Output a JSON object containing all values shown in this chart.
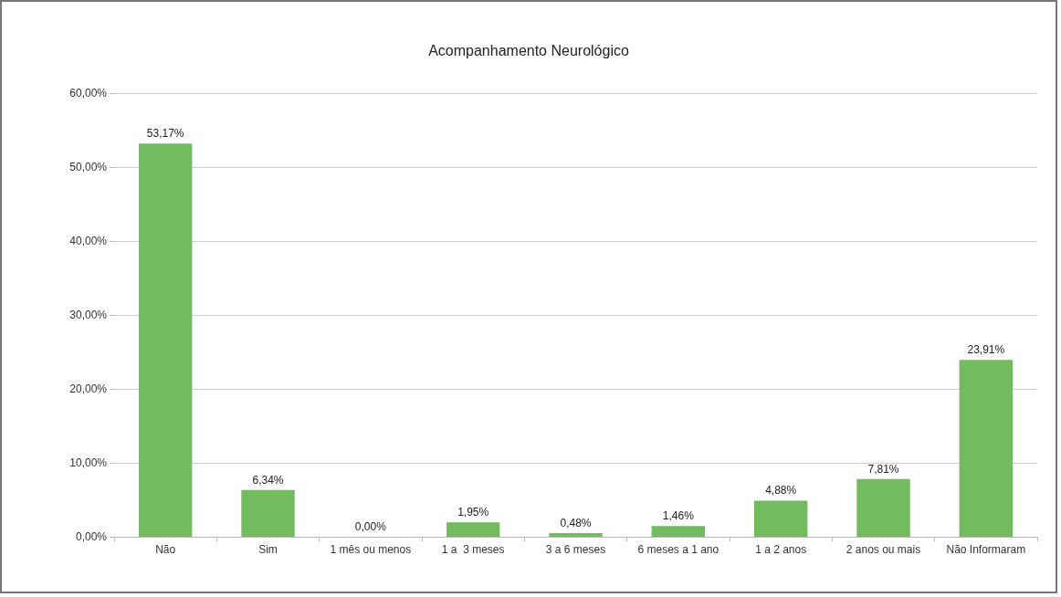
{
  "chart_data": {
    "type": "bar",
    "title": "Acompanhamento Neurológico",
    "categories": [
      "Não",
      "Sim",
      "1 mês ou menos",
      "1 a  3 meses",
      "3 a 6 meses",
      "6 meses a 1 ano",
      "1 a 2 anos",
      "2 anos ou mais",
      "Não Informaram"
    ],
    "values": [
      53.17,
      6.34,
      0,
      1.95,
      0.48,
      1.46,
      4.88,
      7.81,
      23.91
    ],
    "value_labels": [
      "53,17%",
      "6,34%",
      "0,00%",
      "1,95%",
      "0,48%",
      "1,46%",
      "4,88%",
      "7,81%",
      "23,91%"
    ],
    "color": "#72bb5f",
    "ylim": [
      0,
      60
    ],
    "yticks": [
      {
        "value": 0,
        "label": "0,00%"
      },
      {
        "value": 10,
        "label": "10,00%"
      },
      {
        "value": 20,
        "label": "20,00%"
      },
      {
        "value": 30,
        "label": "30,00%"
      },
      {
        "value": 40,
        "label": "40,00%"
      },
      {
        "value": 50,
        "label": "50,00%"
      },
      {
        "value": 60,
        "label": "60,00%"
      }
    ],
    "grid": "y"
  }
}
